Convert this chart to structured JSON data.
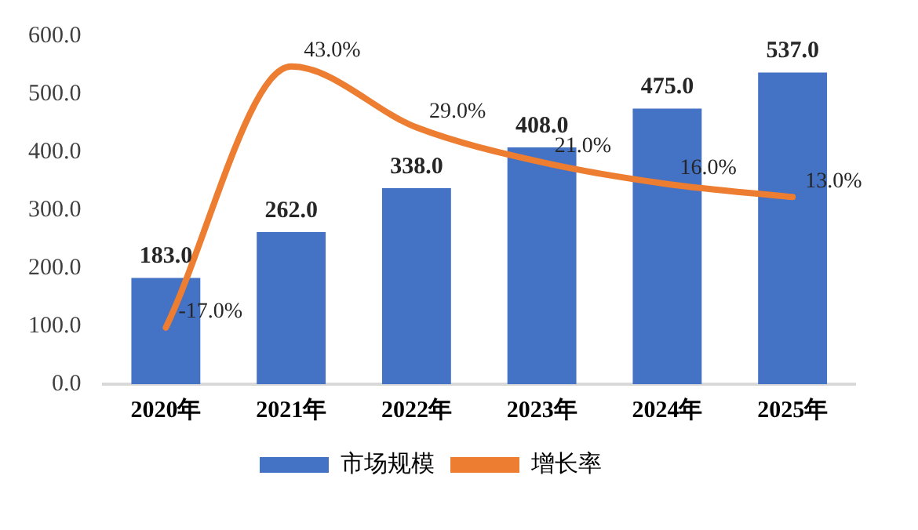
{
  "chart_data": {
    "type": "bar",
    "categories": [
      "2020年",
      "2021年",
      "2022年",
      "2023年",
      "2024年",
      "2025年"
    ],
    "series": [
      {
        "name": "市场规模",
        "color": "#4472c4",
        "values": [
          183,
          262,
          338,
          408,
          475,
          537
        ],
        "value_labels": [
          "183.0",
          "262.0",
          "338.0",
          "408.0",
          "475.0",
          "537.0"
        ]
      },
      {
        "name": "增长率",
        "type": "line",
        "axis": "y2",
        "color": "#ed7d31",
        "values": [
          -17,
          43,
          29,
          21,
          16,
          13
        ],
        "value_labels": [
          "-17.0%",
          "43.0%",
          "29.0%",
          "21.0%",
          "16.0%",
          "13.0%"
        ]
      }
    ],
    "ylim": [
      0,
      600
    ],
    "yticks": [
      {
        "value": 0,
        "label": "0.0"
      },
      {
        "value": 100,
        "label": "100.0"
      },
      {
        "value": 200,
        "label": "200.0"
      },
      {
        "value": 300,
        "label": "300.0"
      },
      {
        "value": 400,
        "label": "400.0"
      },
      {
        "value": 500,
        "label": "500.0"
      },
      {
        "value": 600,
        "label": "600.0"
      }
    ],
    "grid": false,
    "legend": "bottom",
    "marker": "none",
    "line_style": "solid"
  }
}
